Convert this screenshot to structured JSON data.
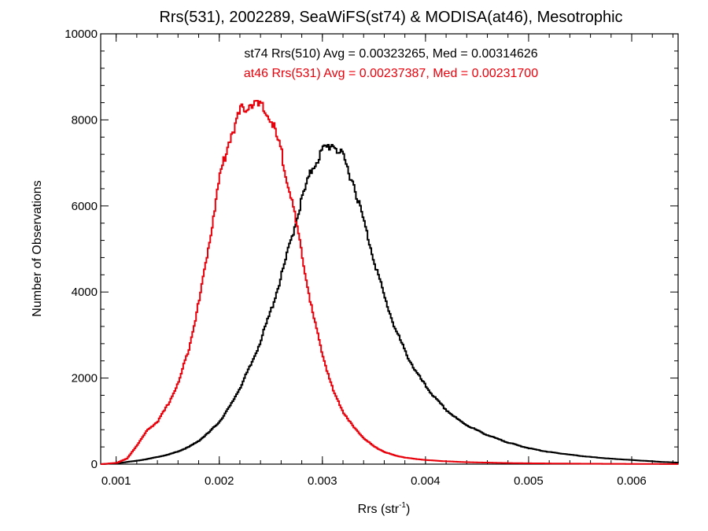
{
  "chart_data": {
    "type": "line",
    "step": true,
    "title": "Rrs(531), 2002289, SeaWiFS(st74) & MODISA(at46), Mesotrophic",
    "xlabel_main": "Rrs (str",
    "xlabel_sup": "-1",
    "xlabel_tail": ")",
    "ylabel": "Number of Observations",
    "xlim": [
      0.00085,
      0.00645
    ],
    "ylim": [
      0,
      10000
    ],
    "x_ticks": [
      {
        "value": 0.001,
        "label": "0.001"
      },
      {
        "value": 0.002,
        "label": "0.002"
      },
      {
        "value": 0.003,
        "label": "0.003"
      },
      {
        "value": 0.004,
        "label": "0.004"
      },
      {
        "value": 0.005,
        "label": "0.005"
      },
      {
        "value": 0.006,
        "label": "0.006"
      }
    ],
    "y_ticks": [
      {
        "value": 0,
        "label": "0"
      },
      {
        "value": 2000,
        "label": "2000"
      },
      {
        "value": 4000,
        "label": "4000"
      },
      {
        "value": 6000,
        "label": "6000"
      },
      {
        "value": 8000,
        "label": "8000"
      },
      {
        "value": 10000,
        "label": "10000"
      }
    ],
    "annotations": [
      {
        "text": "st74 Rrs(510) Avg = 0.00323265, Med = 0.00314626",
        "color": "#000000"
      },
      {
        "text": "at46 Rrs(531) Avg = 0.00237387, Med = 0.00231700",
        "color": "#e8000b"
      }
    ],
    "series": [
      {
        "color": "#000000",
        "x": [
          0.00085,
          0.001,
          0.0011,
          0.0012,
          0.0013,
          0.0014,
          0.0015,
          0.0016,
          0.0017,
          0.0018,
          0.0019,
          0.002,
          0.0021,
          0.0022,
          0.0023,
          0.0024,
          0.0025,
          0.0026,
          0.0027,
          0.0028,
          0.0029,
          0.003,
          0.0031,
          0.0032,
          0.0033,
          0.0034,
          0.0035,
          0.0036,
          0.0037,
          0.0038,
          0.0039,
          0.004,
          0.0041,
          0.0042,
          0.0043,
          0.0044,
          0.0045,
          0.0046,
          0.0047,
          0.0048,
          0.0049,
          0.005,
          0.0051,
          0.0052,
          0.0053,
          0.0054,
          0.0055,
          0.0056,
          0.0057,
          0.0058,
          0.0059,
          0.006,
          0.0061,
          0.0062,
          0.0063,
          0.00645
        ],
        "y": [
          0,
          20,
          50,
          80,
          120,
          170,
          220,
          300,
          400,
          550,
          750,
          1000,
          1350,
          1800,
          2300,
          2900,
          3600,
          4400,
          5300,
          6200,
          6900,
          7300,
          7450,
          7100,
          6500,
          5600,
          4700,
          3850,
          3150,
          2600,
          2150,
          1800,
          1500,
          1250,
          1050,
          900,
          780,
          670,
          580,
          500,
          430,
          370,
          320,
          280,
          250,
          220,
          190,
          165,
          145,
          125,
          110,
          95,
          80,
          65,
          50,
          35
        ]
      },
      {
        "color": "#e8000b",
        "x": [
          0.00085,
          0.001,
          0.0011,
          0.0012,
          0.0013,
          0.0014,
          0.0015,
          0.0016,
          0.0017,
          0.0018,
          0.0019,
          0.002,
          0.0021,
          0.0022,
          0.0023,
          0.0024,
          0.0025,
          0.0026,
          0.0027,
          0.0028,
          0.0029,
          0.003,
          0.0031,
          0.0032,
          0.0033,
          0.0034,
          0.0035,
          0.0036,
          0.0037,
          0.0038,
          0.0039,
          0.004,
          0.0041,
          0.0042,
          0.0043,
          0.0044,
          0.0045,
          0.0046,
          0.0047,
          0.0048,
          0.0049,
          0.005,
          0.0051,
          0.0052,
          0.0053,
          0.0054,
          0.0055,
          0.0056,
          0.0057,
          0.0058,
          0.0059,
          0.006,
          0.0061,
          0.0062,
          0.0063,
          0.00645
        ],
        "y": [
          0,
          30,
          130,
          450,
          800,
          1000,
          1400,
          1900,
          2700,
          3800,
          5200,
          6700,
          7600,
          8200,
          8400,
          8300,
          8000,
          7200,
          6100,
          4800,
          3500,
          2500,
          1700,
          1200,
          850,
          600,
          400,
          280,
          200,
          150,
          120,
          95,
          80,
          65,
          55,
          45,
          40,
          35,
          30,
          25,
          22,
          20,
          18,
          15,
          13,
          12,
          10,
          9,
          8,
          7,
          6,
          5,
          5,
          4,
          3,
          2
        ]
      }
    ]
  }
}
